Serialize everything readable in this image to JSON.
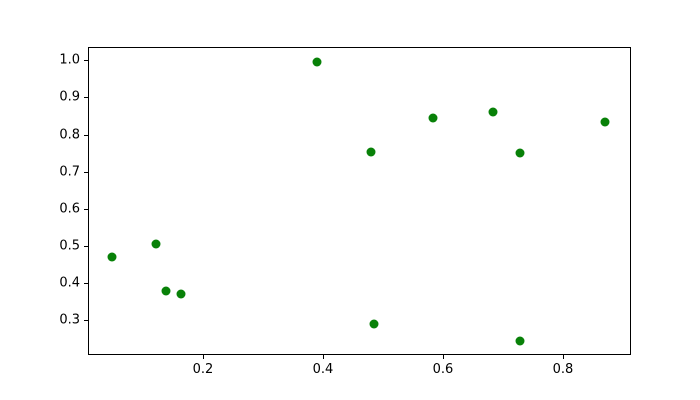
{
  "chart_data": {
    "type": "scatter",
    "title": "",
    "xlabel": "",
    "ylabel": "",
    "grid": false,
    "legend": null,
    "marker_color": "#088108",
    "axis_color": "#000000",
    "background_color": "#ffffff",
    "xlim": [
      0.008,
      0.914
    ],
    "ylim": [
      0.2065,
      1.036
    ],
    "x_ticks": [
      0.2,
      0.4,
      0.6,
      0.8
    ],
    "y_ticks": [
      0.3,
      0.4,
      0.5,
      0.6,
      0.7,
      0.8,
      0.9,
      1.0
    ],
    "tick_decimals": 1,
    "points": [
      {
        "x": 0.048,
        "y": 0.47
      },
      {
        "x": 0.122,
        "y": 0.506
      },
      {
        "x": 0.138,
        "y": 0.38
      },
      {
        "x": 0.163,
        "y": 0.372
      },
      {
        "x": 0.39,
        "y": 0.995
      },
      {
        "x": 0.48,
        "y": 0.752
      },
      {
        "x": 0.486,
        "y": 0.29
      },
      {
        "x": 0.583,
        "y": 0.846
      },
      {
        "x": 0.684,
        "y": 0.86
      },
      {
        "x": 0.729,
        "y": 0.75
      },
      {
        "x": 0.729,
        "y": 0.245
      },
      {
        "x": 0.87,
        "y": 0.834
      }
    ]
  }
}
